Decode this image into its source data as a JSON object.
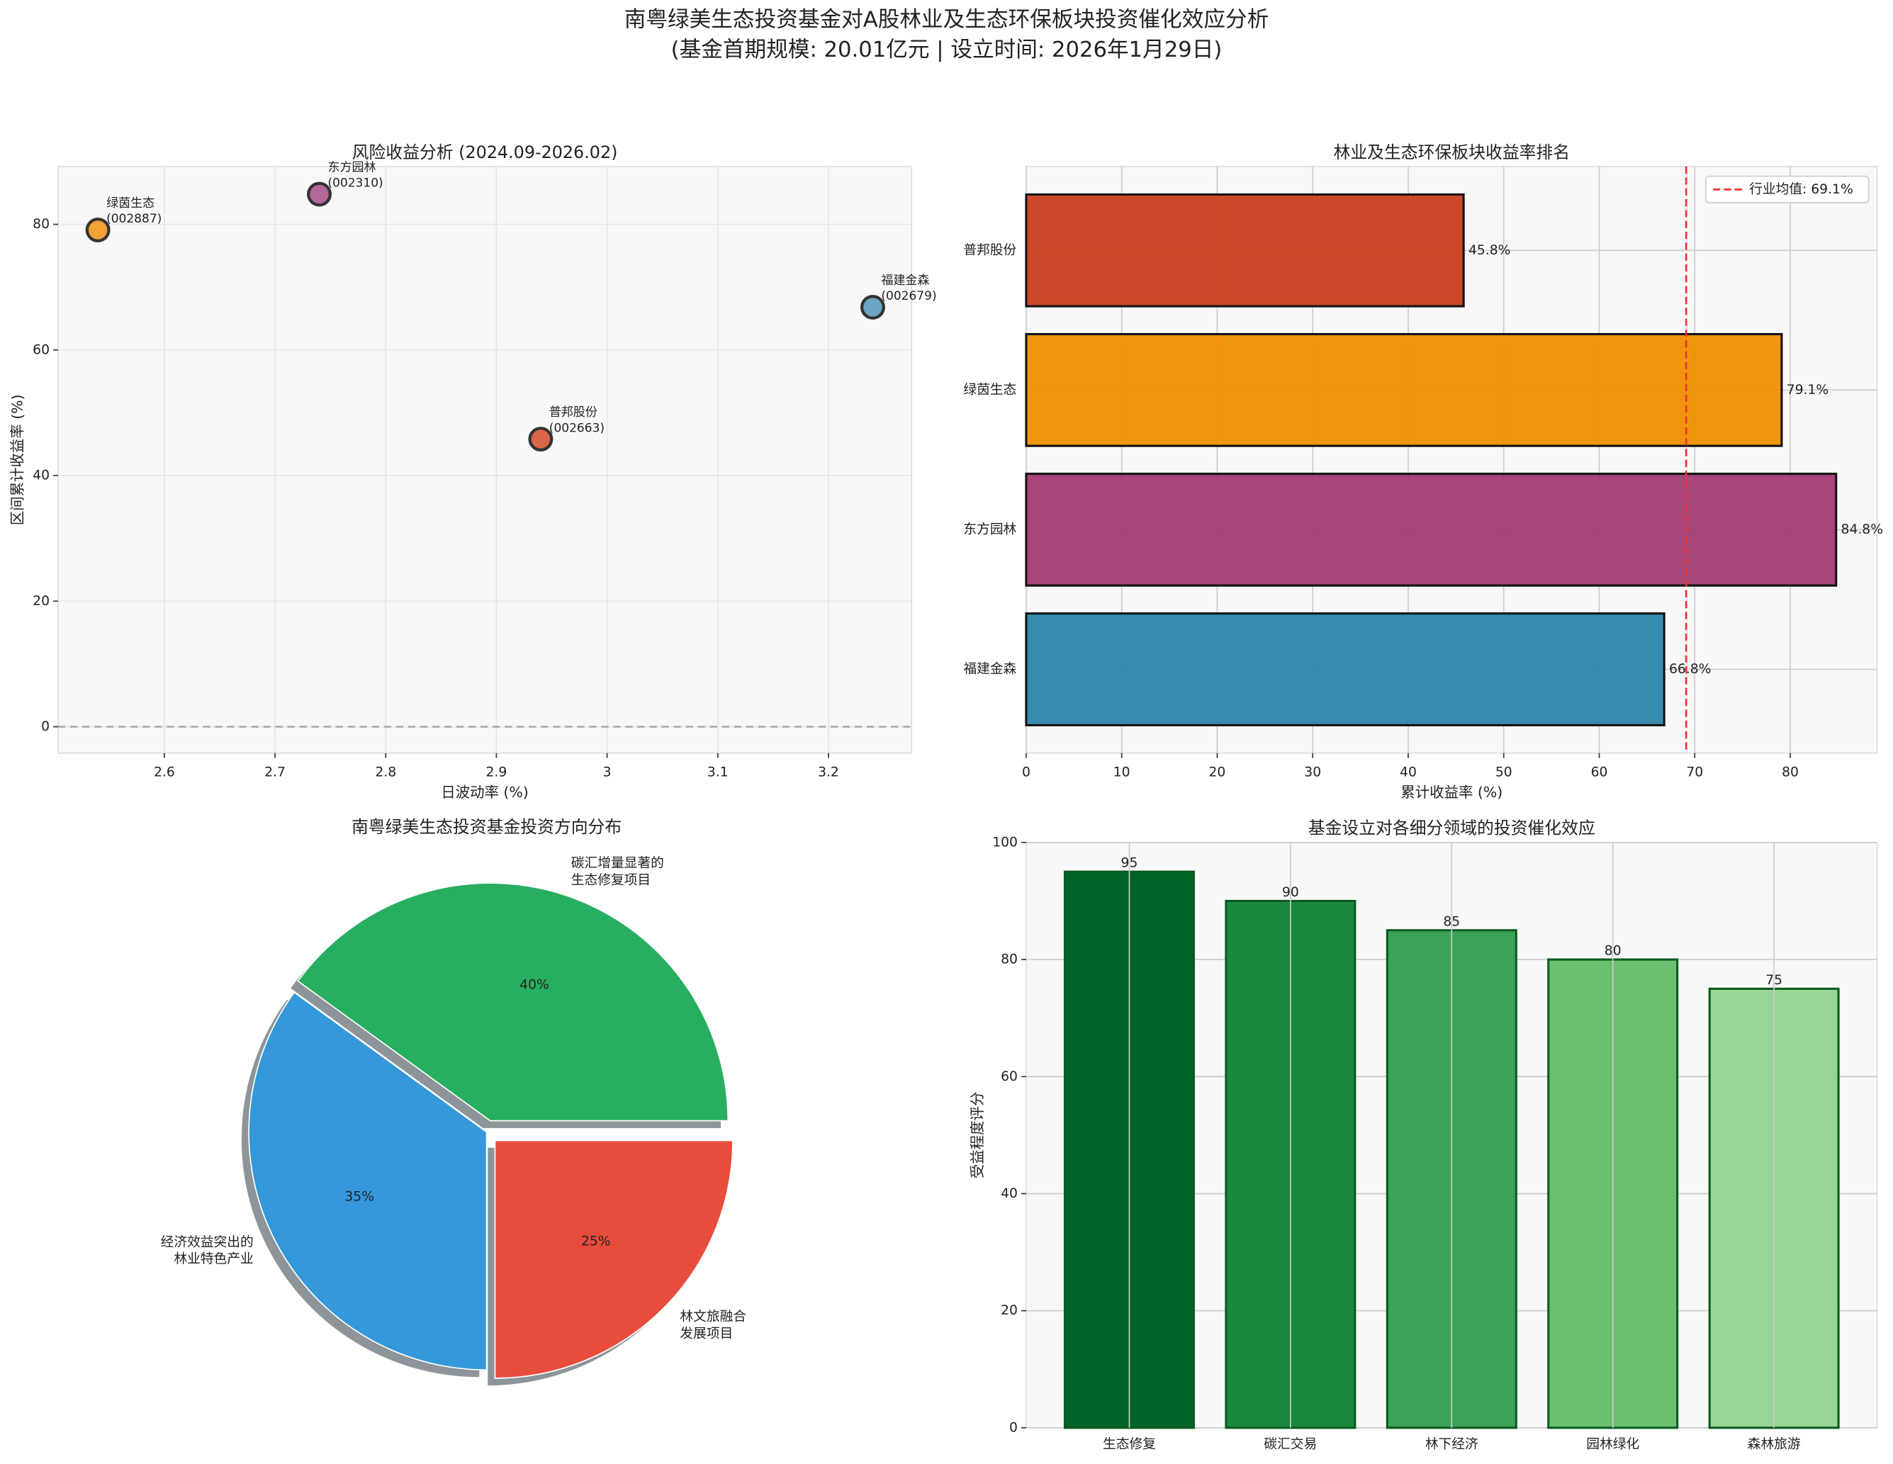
{
  "title": "南粤绿美生态投资基金对A股林业及生态环保板块投资催化效应分析",
  "subtitle": "(基金首期规模: 20.01亿元 | 设立时间: 2026年1月29日)",
  "chart_data": [
    {
      "type": "scatter",
      "title": "风险收益分析 (2024.09-2026.02)",
      "x_label": "日波动率 (%)",
      "y_label": "区间累计收益率 (%)",
      "point_names": [
        "绿茵生态",
        "东方园林",
        "普邦股份",
        "福建金森"
      ],
      "point_codes": [
        "(002887)",
        "(002310)",
        "(002663)",
        "(002679)"
      ],
      "x": [
        2.54,
        2.74,
        2.94,
        3.24
      ],
      "y": [
        79.1,
        84.8,
        45.8,
        66.8
      ],
      "colors": [
        "#f4a335",
        "#b5689a",
        "#d9664a",
        "#6ba5c2"
      ],
      "reference_line": 0,
      "xlim": [
        2.504,
        3.275
      ],
      "ylim": [
        -4.2,
        89.2
      ],
      "xticks": [
        2.6,
        2.7,
        2.8,
        2.9,
        3.0,
        3.1,
        3.2
      ],
      "yticks": [
        0,
        20,
        40,
        60,
        80
      ],
      "grid": true
    },
    {
      "type": "hbar",
      "title": "林业及生态环保板块收益率排名",
      "x_label": "累计收益率 (%)",
      "categories": [
        "福建金森",
        "东方园林",
        "绿茵生态",
        "普邦股份"
      ],
      "values": [
        66.8,
        84.8,
        79.1,
        45.8
      ],
      "value_labels": [
        "66.8%",
        "84.8%",
        "79.1%",
        "45.8%"
      ],
      "colors": [
        "#2e86ab",
        "#a23b72",
        "#f18f01",
        "#c73e1d"
      ],
      "mean_line": {
        "value": 69.1,
        "label": "行业均值: 69.1%"
      },
      "xlim": [
        0,
        89.1
      ],
      "xticks": [
        0,
        10,
        20,
        30,
        40,
        50,
        60,
        70,
        80
      ],
      "grid": true,
      "legend": "upper right"
    },
    {
      "type": "pie",
      "title": "南粤绿美生态投资基金投资方向分布",
      "labels": [
        [
          "碳汇增量显著的",
          "生态修复项目"
        ],
        [
          "经济效益突出的",
          "林业特色产业"
        ],
        [
          "林文旅融合",
          "发展项目"
        ]
      ],
      "values": [
        40,
        35,
        25
      ],
      "value_labels": [
        "40%",
        "35%",
        "25%"
      ],
      "colors": [
        "#27ae60",
        "#3498db",
        "#e74c3c"
      ]
    },
    {
      "type": "bar",
      "title": "基金设立对各细分领域的投资催化效应",
      "y_label": "受益程度评分",
      "categories": [
        "生态修复",
        "碳汇交易",
        "林下经济",
        "园林绿化",
        "森林旅游"
      ],
      "values": [
        95,
        90,
        85,
        80,
        75
      ],
      "colors": [
        "#006428",
        "#1b8841",
        "#3aa357",
        "#6bbf6f",
        "#98d494"
      ],
      "ylim": [
        0,
        100
      ],
      "yticks": [
        0,
        20,
        40,
        60,
        80,
        100
      ],
      "grid": true
    }
  ]
}
